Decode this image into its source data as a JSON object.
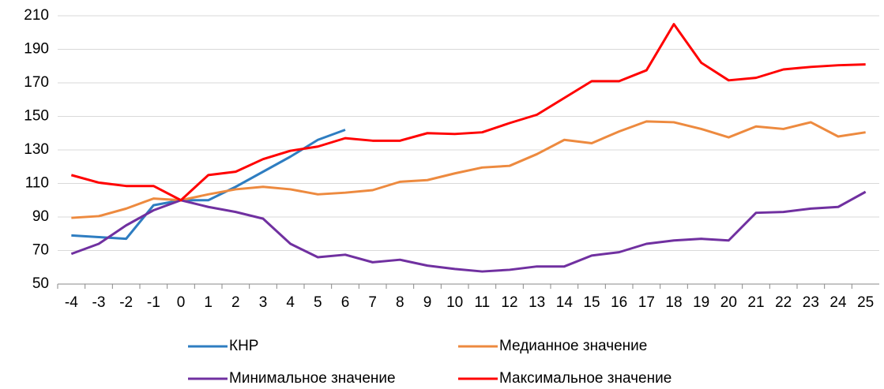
{
  "chart_data": {
    "type": "line",
    "x": [
      -4,
      -3,
      -2,
      -1,
      0,
      1,
      2,
      3,
      4,
      5,
      6,
      7,
      8,
      9,
      10,
      11,
      12,
      13,
      14,
      15,
      16,
      17,
      18,
      19,
      20,
      21,
      22,
      23,
      24,
      25
    ],
    "xlim": [
      -4.5,
      25.5
    ],
    "xticks": [
      -4,
      -3,
      -2,
      -1,
      0,
      1,
      2,
      3,
      4,
      5,
      6,
      7,
      8,
      9,
      10,
      11,
      12,
      13,
      14,
      15,
      16,
      17,
      18,
      19,
      20,
      21,
      22,
      23,
      24,
      25
    ],
    "ylim": [
      50,
      210
    ],
    "yticks": [
      50,
      70,
      90,
      110,
      130,
      150,
      170,
      190,
      210
    ],
    "grid": true,
    "legend": "bottom",
    "series": [
      {
        "name": "КНР",
        "color": "#2e7dc1",
        "values": [
          79,
          78,
          77,
          97,
          100,
          100,
          108,
          117,
          126,
          136,
          142,
          null,
          null,
          null,
          null,
          null,
          null,
          null,
          null,
          null,
          null,
          null,
          null,
          null,
          null,
          null,
          null,
          null,
          null,
          null
        ]
      },
      {
        "name": "Медианное значение",
        "color": "#ed8a3f",
        "values": [
          89.5,
          90.5,
          95,
          101,
          100,
          103.5,
          106.5,
          108,
          106.5,
          103.5,
          104.5,
          106,
          111,
          112,
          116,
          119.5,
          120.5,
          127.5,
          136,
          134,
          141,
          147,
          146.5,
          142.5,
          137.5,
          144,
          142.5,
          146.5,
          138,
          140.5
        ]
      },
      {
        "name": "Минимальное значение",
        "color": "#7030a0",
        "values": [
          68,
          74,
          85,
          94,
          100,
          96,
          93,
          89,
          74,
          66,
          67.5,
          63,
          64.5,
          61,
          59,
          57.5,
          58.5,
          60.5,
          60.5,
          67,
          69,
          74,
          76,
          77,
          76,
          92.5,
          93,
          95,
          96,
          105
        ]
      },
      {
        "name": "Максимальное значение",
        "color": "#ff0000",
        "values": [
          115,
          110.5,
          108.5,
          108.5,
          100,
          115,
          117,
          124.5,
          129.5,
          132,
          137,
          135.5,
          135.5,
          140,
          139.5,
          140.5,
          146,
          151,
          161,
          171,
          171,
          177.5,
          205,
          182,
          171.5,
          173,
          178,
          179.5,
          180.5,
          181
        ]
      }
    ]
  }
}
